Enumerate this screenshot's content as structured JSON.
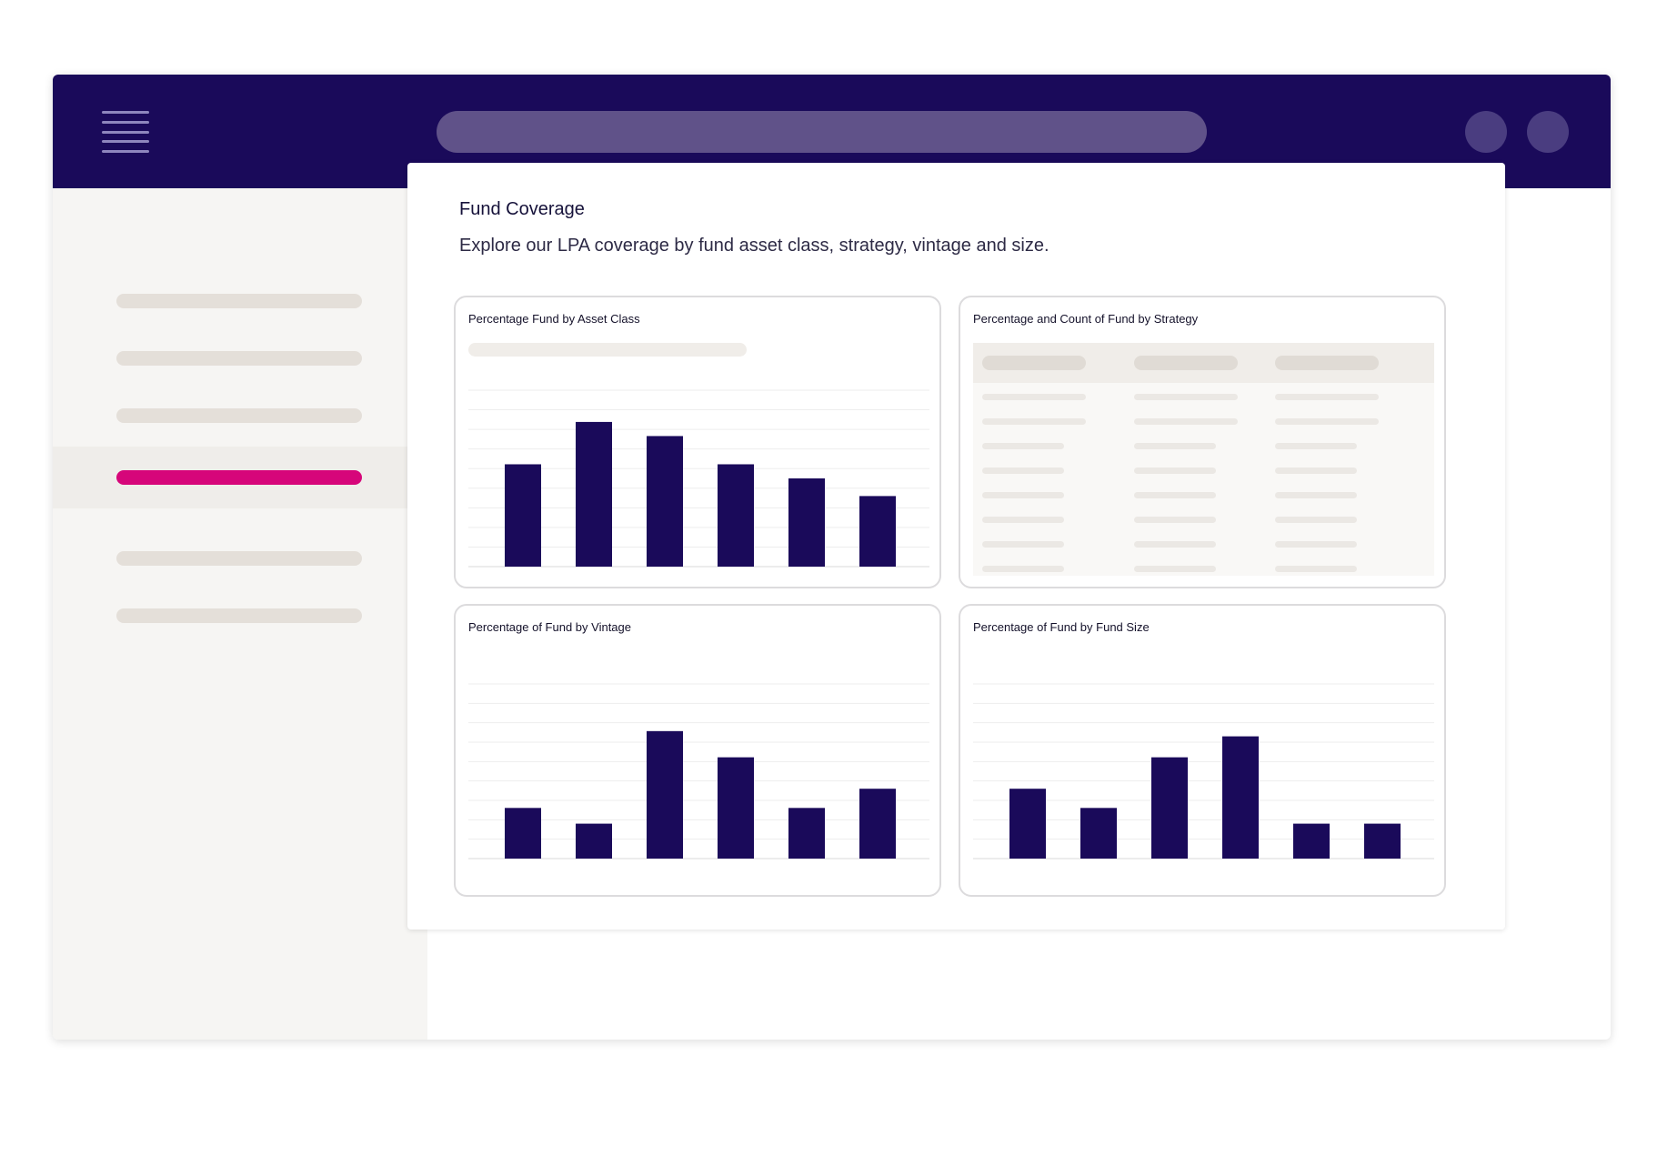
{
  "app": {
    "accent_color": "#d6067a",
    "header_color": "#1a0a5a",
    "bar_color": "#1a0a5a"
  },
  "header": {
    "menu_icon": "hamburger-menu-icon",
    "search": {
      "value": ""
    },
    "action_buttons": [
      "circle-button",
      "circle-button"
    ]
  },
  "sidebar": {
    "items": [
      {
        "label": "",
        "active": false
      },
      {
        "label": "",
        "active": false
      },
      {
        "label": "",
        "active": false
      },
      {
        "label": "",
        "active": true
      },
      {
        "label": "",
        "active": false
      },
      {
        "label": "",
        "active": false
      }
    ]
  },
  "main": {
    "title": "Fund Coverage",
    "subtitle": "Explore our LPA coverage by fund asset class, strategy, vintage and size."
  },
  "chart_data": [
    {
      "type": "bar",
      "title": "Percentage Fund by Asset Class",
      "categories": [
        "",
        "",
        "",
        "",
        "",
        ""
      ],
      "values": [
        58,
        82,
        74,
        58,
        50,
        40
      ],
      "ylim": [
        0,
        100
      ],
      "grid": true
    },
    {
      "type": "table",
      "title": "Percentage and Count of Fund by Strategy",
      "columns": [
        "",
        "",
        ""
      ],
      "rows": 8
    },
    {
      "type": "bar",
      "title": "Percentage of Fund by Vintage",
      "categories": [
        "",
        "",
        "",
        "",
        "",
        ""
      ],
      "values": [
        29,
        20,
        73,
        58,
        29,
        40
      ],
      "ylim": [
        0,
        100
      ],
      "grid": true
    },
    {
      "type": "bar",
      "title": "Percentage of Fund by Fund Size",
      "categories": [
        "",
        "",
        "",
        "",
        "",
        ""
      ],
      "values": [
        40,
        29,
        58,
        70,
        20,
        20
      ],
      "ylim": [
        0,
        100
      ],
      "grid": true
    }
  ]
}
